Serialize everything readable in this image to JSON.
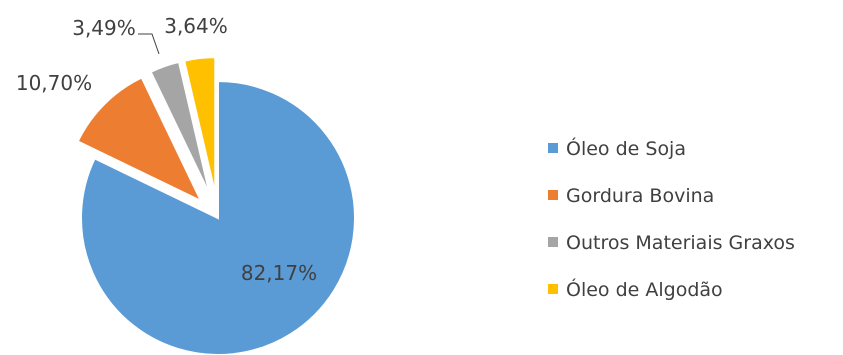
{
  "chart_data": {
    "type": "pie",
    "title": "",
    "exploded": true,
    "legend_position": "right",
    "series": [
      {
        "categories": [
          "Óleo de Soja",
          "Gordura Bovina",
          "Outros Materiais Graxos",
          "Óleo de Algodão"
        ],
        "values": [
          82.17,
          10.7,
          3.49,
          3.64
        ],
        "labels": [
          "82,17%",
          "10,70%",
          "3,49%",
          "3,64%"
        ],
        "colors": [
          "#5B9BD5",
          "#ED7D31",
          "#A5A5A5",
          "#FFC000"
        ]
      }
    ]
  }
}
